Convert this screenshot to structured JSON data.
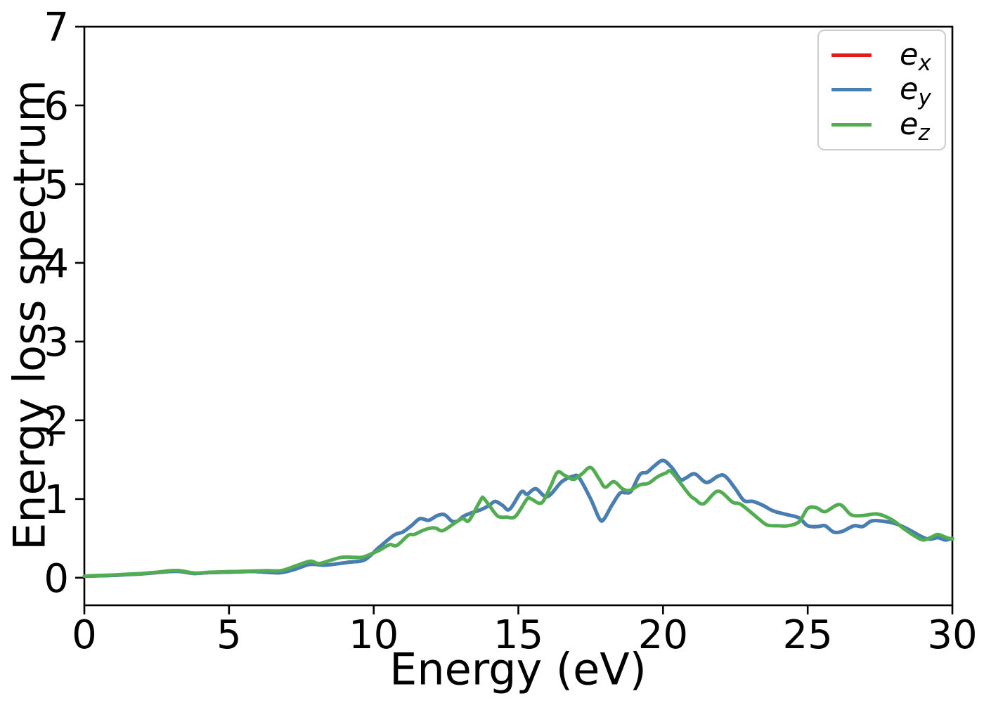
{
  "axes": {
    "xlabel": "Energy (eV)",
    "ylabel": "Energy loss spectrum",
    "xlim": [
      0,
      30
    ],
    "ylim": [
      -0.35,
      7
    ],
    "xticks": [
      0,
      5,
      10,
      15,
      20,
      25,
      30
    ],
    "yticks": [
      0,
      1,
      2,
      3,
      4,
      5,
      6,
      7
    ]
  },
  "legend": {
    "position": "upper right",
    "items": [
      {
        "base": "e",
        "sub": "x",
        "color": "#e41a1c"
      },
      {
        "base": "e",
        "sub": "y",
        "color": "#4580b4"
      },
      {
        "base": "e",
        "sub": "z",
        "color": "#52ac52"
      }
    ]
  },
  "chart_data": {
    "type": "line",
    "title": "",
    "xlabel": "Energy (eV)",
    "ylabel": "Energy loss spectrum",
    "xlim": [
      0,
      30
    ],
    "ylim": [
      -0.35,
      7
    ],
    "grid": false,
    "legend_position": "upper right",
    "series": [
      {
        "name": "e_x",
        "color": "#e41a1c",
        "points": [
          [
            0,
            0.02
          ],
          [
            0.5,
            0.025
          ],
          [
            1,
            0.03
          ],
          [
            1.5,
            0.04
          ],
          [
            2,
            0.05
          ],
          [
            2.5,
            0.065
          ],
          [
            3,
            0.08
          ],
          [
            3.3,
            0.08
          ],
          [
            3.8,
            0.055
          ],
          [
            4.3,
            0.065
          ],
          [
            4.8,
            0.07
          ],
          [
            5.3,
            0.075
          ],
          [
            5.8,
            0.08
          ],
          [
            6.3,
            0.07
          ],
          [
            6.8,
            0.065
          ],
          [
            7.3,
            0.11
          ],
          [
            7.8,
            0.17
          ],
          [
            8.3,
            0.16
          ],
          [
            8.8,
            0.18
          ],
          [
            9.2,
            0.2
          ],
          [
            9.7,
            0.23
          ],
          [
            10.2,
            0.39
          ],
          [
            10.7,
            0.54
          ],
          [
            11,
            0.58
          ],
          [
            11.3,
            0.66
          ],
          [
            11.6,
            0.75
          ],
          [
            11.9,
            0.73
          ],
          [
            12.2,
            0.79
          ],
          [
            12.45,
            0.8
          ],
          [
            12.7,
            0.72
          ],
          [
            12.9,
            0.72
          ],
          [
            13.1,
            0.78
          ],
          [
            13.35,
            0.82
          ],
          [
            13.6,
            0.85
          ],
          [
            13.8,
            0.88
          ],
          [
            14,
            0.92
          ],
          [
            14.2,
            0.97
          ],
          [
            14.45,
            0.92
          ],
          [
            14.7,
            0.87
          ],
          [
            15.1,
            1.09
          ],
          [
            15.3,
            1.06
          ],
          [
            15.6,
            1.13
          ],
          [
            16,
            1.03
          ],
          [
            16.5,
            1.22
          ],
          [
            16.9,
            1.29
          ],
          [
            17.1,
            1.27
          ],
          [
            17.5,
            1.0
          ],
          [
            17.8,
            0.75
          ],
          [
            17.95,
            0.74
          ],
          [
            18.2,
            0.9
          ],
          [
            18.5,
            1.07
          ],
          [
            18.7,
            1.08
          ],
          [
            18.9,
            1.1
          ],
          [
            19.2,
            1.31
          ],
          [
            19.45,
            1.34
          ],
          [
            19.7,
            1.42
          ],
          [
            20,
            1.49
          ],
          [
            20.3,
            1.4
          ],
          [
            20.6,
            1.25
          ],
          [
            20.8,
            1.27
          ],
          [
            21.1,
            1.32
          ],
          [
            21.5,
            1.21
          ],
          [
            21.9,
            1.29
          ],
          [
            22.15,
            1.29
          ],
          [
            22.5,
            1.13
          ],
          [
            22.8,
            0.98
          ],
          [
            23.1,
            0.97
          ],
          [
            23.45,
            0.92
          ],
          [
            23.8,
            0.85
          ],
          [
            24.3,
            0.8
          ],
          [
            24.7,
            0.76
          ],
          [
            25,
            0.66
          ],
          [
            25.35,
            0.65
          ],
          [
            25.6,
            0.66
          ],
          [
            25.9,
            0.58
          ],
          [
            26.2,
            0.59
          ],
          [
            26.6,
            0.66
          ],
          [
            26.9,
            0.65
          ],
          [
            27.2,
            0.72
          ],
          [
            27.55,
            0.72
          ],
          [
            28,
            0.69
          ],
          [
            28.4,
            0.63
          ],
          [
            29,
            0.51
          ],
          [
            29.25,
            0.49
          ],
          [
            29.5,
            0.51
          ],
          [
            29.75,
            0.48
          ],
          [
            30,
            0.5
          ]
        ]
      },
      {
        "name": "e_y",
        "color": "#4580b4",
        "points": [
          [
            0,
            0.02
          ],
          [
            0.5,
            0.025
          ],
          [
            1,
            0.03
          ],
          [
            1.5,
            0.04
          ],
          [
            2,
            0.05
          ],
          [
            2.5,
            0.065
          ],
          [
            3,
            0.08
          ],
          [
            3.3,
            0.08
          ],
          [
            3.8,
            0.055
          ],
          [
            4.3,
            0.065
          ],
          [
            4.8,
            0.07
          ],
          [
            5.3,
            0.075
          ],
          [
            5.8,
            0.08
          ],
          [
            6.3,
            0.07
          ],
          [
            6.8,
            0.065
          ],
          [
            7.3,
            0.11
          ],
          [
            7.8,
            0.17
          ],
          [
            8.3,
            0.16
          ],
          [
            8.8,
            0.18
          ],
          [
            9.2,
            0.2
          ],
          [
            9.7,
            0.23
          ],
          [
            10.2,
            0.39
          ],
          [
            10.7,
            0.54
          ],
          [
            11,
            0.58
          ],
          [
            11.3,
            0.66
          ],
          [
            11.6,
            0.75
          ],
          [
            11.9,
            0.73
          ],
          [
            12.2,
            0.79
          ],
          [
            12.45,
            0.8
          ],
          [
            12.7,
            0.72
          ],
          [
            12.9,
            0.72
          ],
          [
            13.1,
            0.78
          ],
          [
            13.35,
            0.82
          ],
          [
            13.6,
            0.85
          ],
          [
            13.8,
            0.88
          ],
          [
            14,
            0.92
          ],
          [
            14.2,
            0.97
          ],
          [
            14.45,
            0.92
          ],
          [
            14.7,
            0.87
          ],
          [
            15.1,
            1.09
          ],
          [
            15.3,
            1.06
          ],
          [
            15.6,
            1.13
          ],
          [
            16,
            1.03
          ],
          [
            16.5,
            1.22
          ],
          [
            16.9,
            1.29
          ],
          [
            17.1,
            1.27
          ],
          [
            17.5,
            1.0
          ],
          [
            17.8,
            0.75
          ],
          [
            17.95,
            0.74
          ],
          [
            18.2,
            0.9
          ],
          [
            18.5,
            1.07
          ],
          [
            18.7,
            1.08
          ],
          [
            18.9,
            1.1
          ],
          [
            19.2,
            1.31
          ],
          [
            19.45,
            1.34
          ],
          [
            19.7,
            1.42
          ],
          [
            20,
            1.49
          ],
          [
            20.3,
            1.4
          ],
          [
            20.6,
            1.25
          ],
          [
            20.8,
            1.27
          ],
          [
            21.1,
            1.32
          ],
          [
            21.5,
            1.21
          ],
          [
            21.9,
            1.29
          ],
          [
            22.15,
            1.29
          ],
          [
            22.5,
            1.13
          ],
          [
            22.8,
            0.98
          ],
          [
            23.1,
            0.97
          ],
          [
            23.45,
            0.92
          ],
          [
            23.8,
            0.85
          ],
          [
            24.3,
            0.8
          ],
          [
            24.7,
            0.76
          ],
          [
            25,
            0.66
          ],
          [
            25.35,
            0.65
          ],
          [
            25.6,
            0.66
          ],
          [
            25.9,
            0.58
          ],
          [
            26.2,
            0.59
          ],
          [
            26.6,
            0.66
          ],
          [
            26.9,
            0.65
          ],
          [
            27.2,
            0.72
          ],
          [
            27.55,
            0.72
          ],
          [
            28,
            0.69
          ],
          [
            28.4,
            0.63
          ],
          [
            29,
            0.51
          ],
          [
            29.25,
            0.49
          ],
          [
            29.5,
            0.51
          ],
          [
            29.75,
            0.48
          ],
          [
            30,
            0.5
          ]
        ]
      },
      {
        "name": "e_z",
        "color": "#52ac52",
        "points": [
          [
            0,
            0.02
          ],
          [
            0.5,
            0.03
          ],
          [
            1,
            0.035
          ],
          [
            1.5,
            0.045
          ],
          [
            2,
            0.055
          ],
          [
            2.5,
            0.07
          ],
          [
            3,
            0.09
          ],
          [
            3.3,
            0.09
          ],
          [
            3.8,
            0.06
          ],
          [
            4.3,
            0.07
          ],
          [
            4.8,
            0.075
          ],
          [
            5.3,
            0.08
          ],
          [
            5.8,
            0.085
          ],
          [
            6.3,
            0.09
          ],
          [
            6.8,
            0.09
          ],
          [
            7.3,
            0.15
          ],
          [
            7.8,
            0.21
          ],
          [
            8.1,
            0.18
          ],
          [
            8.5,
            0.22
          ],
          [
            8.9,
            0.26
          ],
          [
            9.3,
            0.26
          ],
          [
            9.6,
            0.26
          ],
          [
            9.9,
            0.3
          ],
          [
            10.2,
            0.35
          ],
          [
            10.55,
            0.42
          ],
          [
            10.8,
            0.41
          ],
          [
            11.2,
            0.54
          ],
          [
            11.4,
            0.55
          ],
          [
            11.7,
            0.6
          ],
          [
            11.95,
            0.63
          ],
          [
            12.15,
            0.63
          ],
          [
            12.4,
            0.6
          ],
          [
            12.9,
            0.72
          ],
          [
            13.1,
            0.75
          ],
          [
            13.3,
            0.73
          ],
          [
            13.7,
            0.99
          ],
          [
            13.8,
            1.01
          ],
          [
            14.05,
            0.89
          ],
          [
            14.3,
            0.78
          ],
          [
            14.6,
            0.77
          ],
          [
            14.9,
            0.78
          ],
          [
            15.3,
            1.0
          ],
          [
            15.45,
            1.0
          ],
          [
            15.8,
            0.95
          ],
          [
            16.1,
            1.15
          ],
          [
            16.35,
            1.34
          ],
          [
            16.6,
            1.3
          ],
          [
            16.9,
            1.25
          ],
          [
            17.2,
            1.32
          ],
          [
            17.5,
            1.4
          ],
          [
            17.8,
            1.25
          ],
          [
            18,
            1.15
          ],
          [
            18.3,
            1.22
          ],
          [
            18.6,
            1.13
          ],
          [
            18.85,
            1.11
          ],
          [
            19.2,
            1.18
          ],
          [
            19.5,
            1.2
          ],
          [
            19.8,
            1.28
          ],
          [
            20.1,
            1.33
          ],
          [
            20.3,
            1.34
          ],
          [
            20.9,
            1.06
          ],
          [
            21.1,
            1.0
          ],
          [
            21.4,
            0.94
          ],
          [
            21.9,
            1.1
          ],
          [
            22.4,
            0.96
          ],
          [
            22.7,
            0.93
          ],
          [
            23.3,
            0.75
          ],
          [
            23.6,
            0.67
          ],
          [
            24,
            0.66
          ],
          [
            24.3,
            0.66
          ],
          [
            24.7,
            0.71
          ],
          [
            25,
            0.88
          ],
          [
            25.3,
            0.89
          ],
          [
            25.6,
            0.84
          ],
          [
            26.1,
            0.93
          ],
          [
            26.5,
            0.8
          ],
          [
            26.9,
            0.79
          ],
          [
            27.4,
            0.81
          ],
          [
            27.9,
            0.74
          ],
          [
            28.3,
            0.63
          ],
          [
            28.7,
            0.53
          ],
          [
            29,
            0.48
          ],
          [
            29.3,
            0.52
          ],
          [
            29.5,
            0.55
          ],
          [
            29.8,
            0.51
          ],
          [
            30,
            0.49
          ]
        ]
      }
    ]
  }
}
